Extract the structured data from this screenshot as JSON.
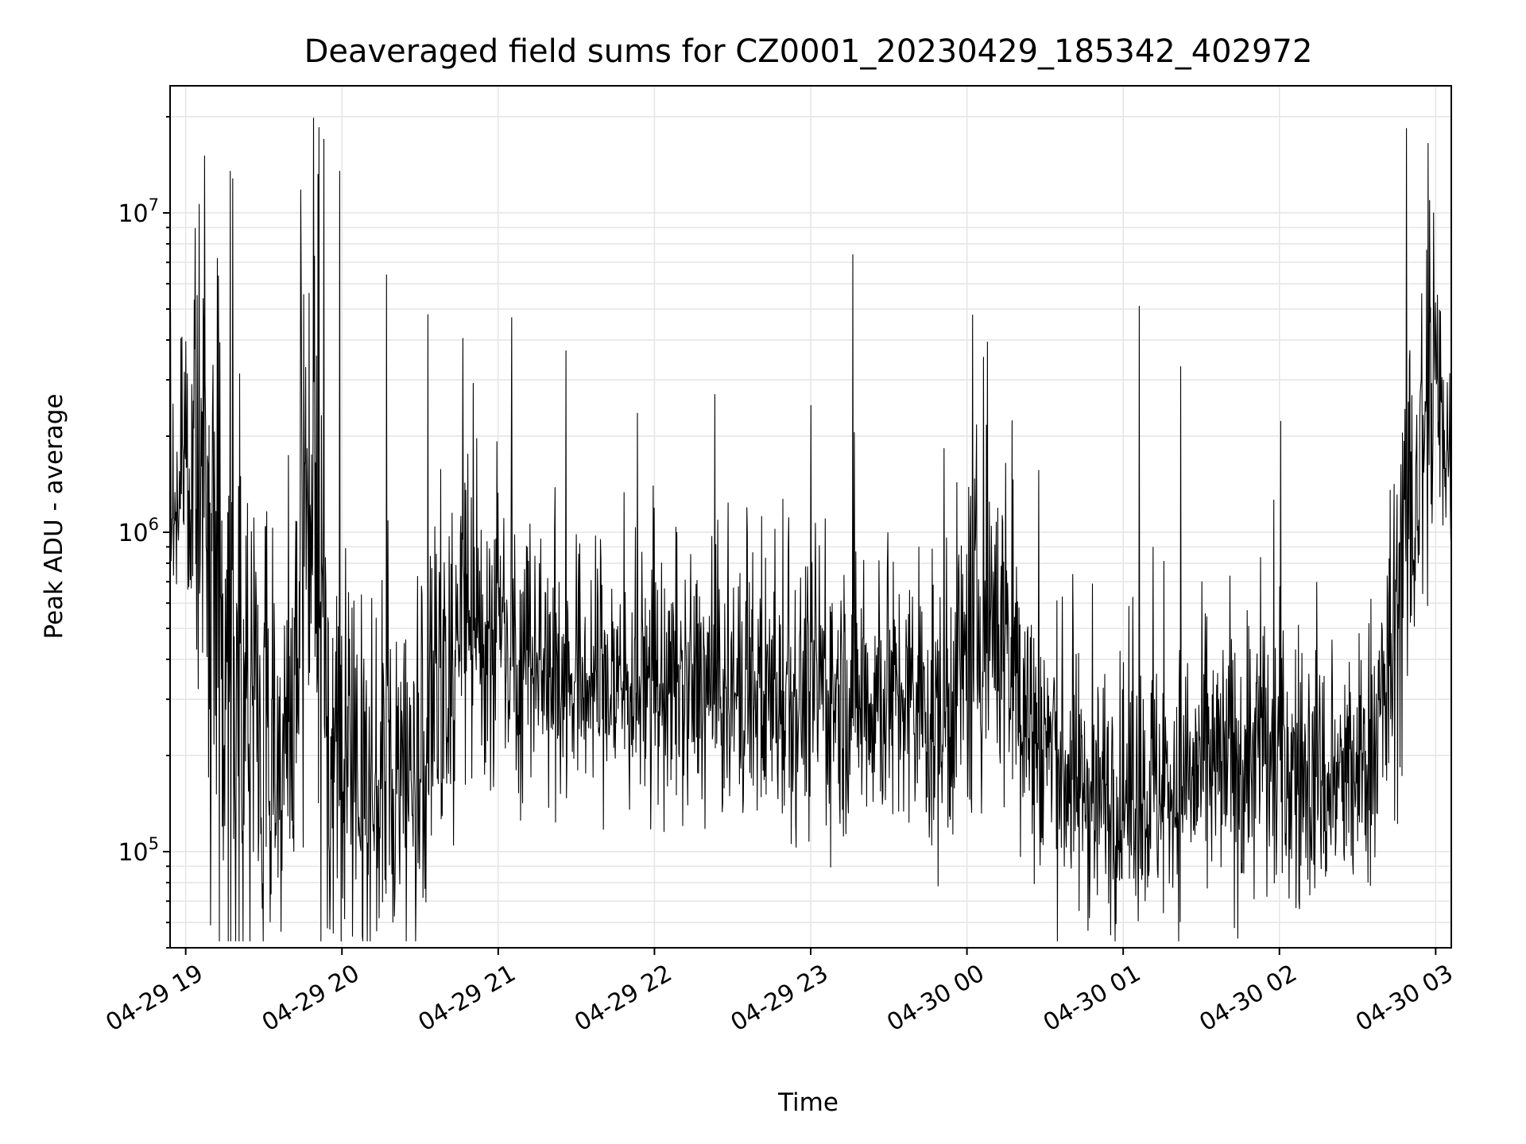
{
  "chart_data": {
    "type": "line",
    "title": "Deaveraged field sums for CZ0001_20230429_185342_402972",
    "xlabel": "Time",
    "ylabel": "Peak ADU - average",
    "yscale": "log",
    "x_range": [
      "2023-04-29 18:54",
      "2023-04-30 03:06"
    ],
    "ylim": [
      50000,
      25000000
    ],
    "x_ticks": [
      "04-29 19",
      "04-29 20",
      "04-29 21",
      "04-29 22",
      "04-29 23",
      "04-30 00",
      "04-30 01",
      "04-30 02",
      "04-30 03"
    ],
    "y_ticks": [
      {
        "value": 100000,
        "base": "10",
        "exp": "5"
      },
      {
        "value": 1000000,
        "base": "10",
        "exp": "6"
      },
      {
        "value": 10000000,
        "base": "10",
        "exp": "7"
      }
    ],
    "grid": true,
    "series_color": "#000000",
    "envelope": {
      "x": [
        "2023-04-29 18:54",
        "2023-04-29 19:03",
        "2023-04-29 19:09",
        "2023-04-29 19:15",
        "2023-04-29 19:24",
        "2023-04-29 19:33",
        "2023-04-29 19:42",
        "2023-04-29 19:48",
        "2023-04-29 19:54",
        "2023-04-29 20:09",
        "2023-04-29 20:30",
        "2023-04-29 20:48",
        "2023-04-29 21:00",
        "2023-04-29 21:30",
        "2023-04-29 22:00",
        "2023-04-29 22:30",
        "2023-04-29 23:00",
        "2023-04-29 23:30",
        "2023-04-29 23:51",
        "2023-04-30 00:09",
        "2023-04-30 00:24",
        "2023-04-30 00:42",
        "2023-04-30 01:00",
        "2023-04-30 01:30",
        "2023-04-30 01:54",
        "2023-04-30 02:06",
        "2023-04-30 02:18",
        "2023-04-30 02:30",
        "2023-04-30 02:42",
        "2023-04-30 02:51",
        "2023-04-30 03:00",
        "2023-04-30 03:06"
      ],
      "center": [
        1100000,
        1800000,
        900000,
        400000,
        250000,
        200000,
        200000,
        1300000,
        200000,
        170000,
        180000,
        500000,
        450000,
        350000,
        320000,
        310000,
        310000,
        300000,
        250000,
        600000,
        250000,
        160000,
        150000,
        170000,
        200000,
        180000,
        160000,
        170000,
        300000,
        1200000,
        2500000,
        1800000
      ],
      "spread": [
        1.4,
        2.0,
        3.0,
        3.0,
        2.5,
        2.2,
        2.2,
        4.0,
        2.2,
        2.0,
        2.0,
        1.8,
        1.7,
        1.6,
        1.6,
        1.6,
        1.6,
        1.6,
        1.7,
        2.0,
        1.8,
        1.6,
        1.6,
        1.6,
        1.7,
        1.7,
        1.6,
        1.6,
        1.8,
        2.2,
        2.0,
        1.5
      ]
    },
    "spikes": [
      {
        "x": "2023-04-29 19:12",
        "y": 7200000
      },
      {
        "x": "2023-04-29 19:17",
        "y": 13500000
      },
      {
        "x": "2023-04-29 19:18",
        "y": 12800000
      },
      {
        "x": "2023-04-29 19:44",
        "y": 11800000
      },
      {
        "x": "2023-04-29 19:49",
        "y": 19800000
      },
      {
        "x": "2023-04-29 19:51",
        "y": 18500000
      },
      {
        "x": "2023-04-29 19:53",
        "y": 17000000
      },
      {
        "x": "2023-04-29 19:59",
        "y": 13500000
      },
      {
        "x": "2023-04-29 20:17",
        "y": 6400000
      },
      {
        "x": "2023-04-29 20:33",
        "y": 4800000
      },
      {
        "x": "2023-04-29 21:05",
        "y": 4700000
      },
      {
        "x": "2023-04-29 21:26",
        "y": 3700000
      },
      {
        "x": "2023-04-29 22:23",
        "y": 2700000
      },
      {
        "x": "2023-04-29 23:16",
        "y": 7400000
      },
      {
        "x": "2023-04-30 01:06",
        "y": 5100000
      },
      {
        "x": "2023-04-30 01:22",
        "y": 3300000
      },
      {
        "x": "2023-04-30 02:57",
        "y": 16500000
      },
      {
        "x": "2023-04-30 02:59",
        "y": 10000000
      }
    ]
  }
}
